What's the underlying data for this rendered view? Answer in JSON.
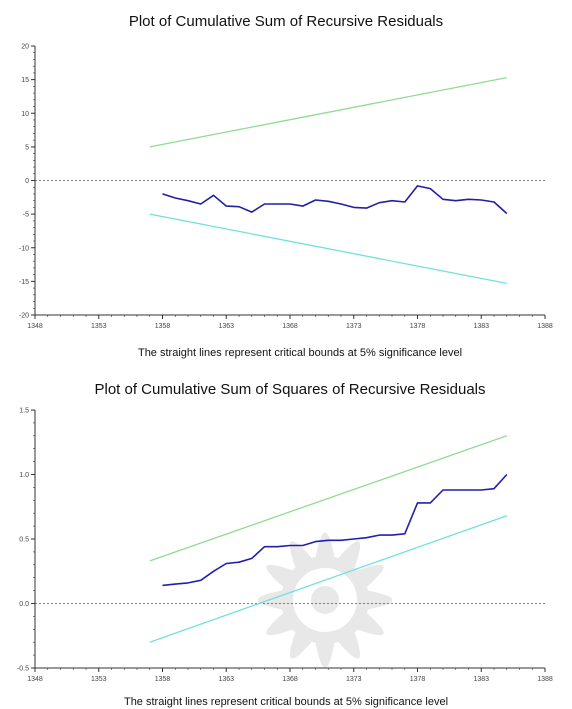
{
  "chart_data": [
    {
      "type": "line",
      "title": "Plot of Cumulative Sum of Recursive Residuals",
      "caption": "The straight lines represent critical bounds at 5% significance level",
      "xlabel": "",
      "ylabel": "",
      "xlim": [
        1348,
        1388
      ],
      "ylim": [
        -20,
        20
      ],
      "x_ticks": [
        "1348",
        "1353",
        "1358",
        "1363",
        "1368",
        "1373",
        "1378",
        "1383",
        "1388"
      ],
      "y_ticks": [
        "20",
        "15",
        "10",
        "5",
        "0",
        "-5",
        "-10",
        "-15",
        "-20"
      ],
      "reference_line": {
        "y": 0,
        "style": "dashed"
      },
      "colors": {
        "cusum": "#2020a0",
        "upper": "#90dc90",
        "lower": "#70e0e0",
        "reference": "#555555"
      },
      "series": [
        {
          "key": "cusum",
          "x": [
            1358,
            1359,
            1360,
            1361,
            1362,
            1363,
            1364,
            1365,
            1366,
            1367,
            1368,
            1369,
            1370,
            1371,
            1372,
            1373,
            1374,
            1375,
            1376,
            1377,
            1378,
            1379,
            1380,
            1381,
            1382,
            1383,
            1384,
            1385
          ],
          "values": [
            -2.0,
            -2.6,
            -3.0,
            -3.5,
            -2.2,
            -3.8,
            -3.9,
            -4.7,
            -3.5,
            -3.5,
            -3.5,
            -3.8,
            -2.9,
            -3.1,
            -3.5,
            -4.0,
            -4.1,
            -3.3,
            -3.0,
            -3.2,
            -0.8,
            -1.2,
            -2.8,
            -3.0,
            -2.8,
            -2.9,
            -3.2,
            -4.9
          ]
        },
        {
          "key": "upper",
          "x": [
            1357,
            1385
          ],
          "values": [
            5.0,
            15.3
          ]
        },
        {
          "key": "lower",
          "x": [
            1357,
            1385
          ],
          "values": [
            -5.0,
            -15.3
          ]
        }
      ]
    },
    {
      "type": "line",
      "title": "Plot of Cumulative Sum of Squares of Recursive Residuals",
      "caption": "The straight lines represent critical bounds at 5% significance level",
      "xlabel": "",
      "ylabel": "",
      "xlim": [
        1348,
        1388
      ],
      "ylim": [
        -0.5,
        1.5
      ],
      "x_ticks": [
        "1348",
        "1353",
        "1358",
        "1363",
        "1368",
        "1373",
        "1378",
        "1383",
        "1388"
      ],
      "y_ticks": [
        "1.5",
        "1.0",
        "0.5",
        "0.0",
        "-0.5"
      ],
      "reference_line": {
        "y": 0,
        "style": "dashed"
      },
      "colors": {
        "cusumsq": "#2020b0",
        "upper": "#90dc90",
        "lower": "#70e0e0",
        "reference": "#555555"
      },
      "series": [
        {
          "key": "cusumsq",
          "x": [
            1358,
            1359,
            1360,
            1361,
            1362,
            1363,
            1364,
            1365,
            1366,
            1367,
            1368,
            1369,
            1370,
            1371,
            1372,
            1373,
            1374,
            1375,
            1376,
            1377,
            1378,
            1379,
            1380,
            1381,
            1382,
            1383,
            1384,
            1385
          ],
          "values": [
            0.14,
            0.15,
            0.16,
            0.18,
            0.25,
            0.31,
            0.32,
            0.35,
            0.44,
            0.44,
            0.45,
            0.45,
            0.48,
            0.49,
            0.49,
            0.5,
            0.51,
            0.53,
            0.53,
            0.54,
            0.78,
            0.78,
            0.88,
            0.88,
            0.88,
            0.88,
            0.89,
            1.0
          ]
        },
        {
          "key": "upper",
          "x": [
            1357,
            1385
          ],
          "values": [
            0.33,
            1.3
          ]
        },
        {
          "key": "lower",
          "x": [
            1357,
            1385
          ],
          "values": [
            -0.3,
            0.68
          ]
        }
      ]
    }
  ]
}
